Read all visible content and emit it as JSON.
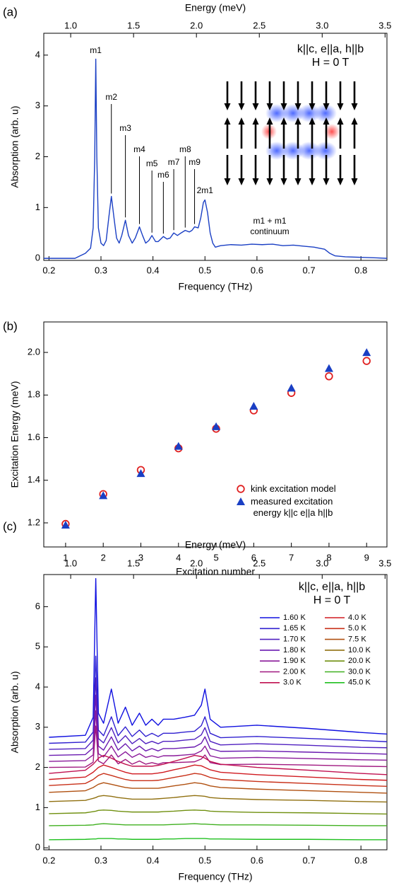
{
  "chart_data": [
    {
      "type": "line",
      "panel_label": "(a)",
      "x_label": "Frequency (THz)",
      "y_label": "Absorption (arb. u)",
      "x2_label": "Energy (meV)",
      "xlim": [
        0.19,
        0.85
      ],
      "ylim": [
        -0.04,
        4.43
      ],
      "x2lim": [
        0.786,
        3.515
      ],
      "xticks": [
        0.2,
        0.3,
        0.4,
        0.5,
        0.6,
        0.7,
        0.8
      ],
      "yticks": [
        0,
        1,
        2,
        3,
        4
      ],
      "x2ticks": [
        {
          "value": 1,
          "label": "1.0"
        },
        1.5,
        {
          "value": 2,
          "label": "2.0"
        },
        2.5,
        {
          "value": 3,
          "label": "3.0"
        },
        3.5
      ],
      "x": [
        0.19,
        0.25,
        0.26,
        0.27,
        0.28,
        0.285,
        0.288,
        0.29,
        0.292,
        0.295,
        0.3,
        0.305,
        0.31,
        0.315,
        0.32,
        0.325,
        0.33,
        0.335,
        0.34,
        0.347,
        0.353,
        0.36,
        0.366,
        0.374,
        0.38,
        0.386,
        0.392,
        0.398,
        0.405,
        0.41,
        0.415,
        0.42,
        0.427,
        0.433,
        0.44,
        0.447,
        0.454,
        0.462,
        0.47,
        0.475,
        0.48,
        0.487,
        0.492,
        0.497,
        0.5,
        0.505,
        0.51,
        0.515,
        0.52,
        0.53,
        0.55,
        0.57,
        0.59,
        0.61,
        0.63,
        0.65,
        0.67,
        0.69,
        0.71,
        0.72,
        0.73,
        0.74,
        0.75,
        0.77,
        0.8,
        0.83,
        0.85
      ],
      "series": [
        {
          "color": "#1a3fc4",
          "values": [
            0,
            0,
            0.05,
            0.1,
            0.2,
            0.6,
            2.0,
            3.92,
            2.0,
            0.6,
            0.3,
            0.25,
            0.35,
            0.8,
            1.22,
            0.8,
            0.4,
            0.3,
            0.45,
            0.75,
            0.45,
            0.3,
            0.4,
            0.62,
            0.45,
            0.3,
            0.35,
            0.45,
            0.33,
            0.33,
            0.38,
            0.43,
            0.38,
            0.4,
            0.5,
            0.45,
            0.5,
            0.55,
            0.52,
            0.55,
            0.62,
            0.6,
            0.8,
            1.1,
            1.15,
            0.9,
            0.5,
            0.3,
            0.22,
            0.25,
            0.27,
            0.26,
            0.28,
            0.27,
            0.28,
            0.25,
            0.26,
            0.24,
            0.22,
            0.2,
            0.18,
            0.1,
            0.05,
            0.03,
            0.02,
            0.01,
            0
          ]
        }
      ],
      "annotations": [
        {
          "text": "m1",
          "x": 0.29,
          "y": 3.92
        },
        {
          "text": "m2",
          "x": 0.32,
          "y": 1.22
        },
        {
          "text": "m3",
          "x": 0.347,
          "y": 0.75
        },
        {
          "text": "m4",
          "x": 0.374,
          "y": 0.62
        },
        {
          "text": "m5",
          "x": 0.398,
          "y": 0.45
        },
        {
          "text": "m6",
          "x": 0.42,
          "y": 0.43
        },
        {
          "text": "m7",
          "x": 0.44,
          "y": 0.5
        },
        {
          "text": "m8",
          "x": 0.462,
          "y": 0.55
        },
        {
          "text": "m9",
          "x": 0.48,
          "y": 0.62
        },
        {
          "text": "2m1",
          "x": 0.5,
          "y": 1.15
        }
      ],
      "notes": [
        "m1 + m1\ncontinuum",
        "k||c, e||a, h||b\nH = 0 T"
      ]
    },
    {
      "type": "scatter",
      "panel_label": "(b)",
      "x_label": "Excitation number",
      "y_label": "Excitation Energy (meV)",
      "xlim": [
        0.42,
        9.54
      ],
      "ylim": [
        1.087,
        2.143
      ],
      "xticks": [
        1,
        2,
        3,
        4,
        5,
        6,
        7,
        8,
        9
      ],
      "yticks": [
        1.2,
        1.4,
        1.6,
        1.8,
        {
          "value": 2,
          "label": "2.0"
        }
      ],
      "x": [
        1,
        2,
        3,
        4,
        5,
        6,
        7,
        8,
        9
      ],
      "legend": "lower right",
      "series": [
        {
          "name": "kink excitation model",
          "color": "#e02020",
          "marker": "circle-open",
          "values": [
            1.195,
            1.335,
            1.448,
            1.55,
            1.642,
            1.728,
            1.81,
            1.888,
            1.96
          ]
        },
        {
          "name": "measured excitation\nenergy k||c e||a h||b",
          "color": "#1a3fc4",
          "marker": "triangle",
          "values": [
            1.19,
            1.328,
            1.432,
            1.56,
            1.652,
            1.748,
            1.833,
            1.925,
            2.0
          ]
        }
      ]
    },
    {
      "type": "line",
      "panel_label": "(c)",
      "x_label": "Frequency (THz)",
      "y_label": "Absorption (arb. u)",
      "x2_label": "Energy (meV)",
      "xlim": [
        0.19,
        0.85
      ],
      "ylim": [
        -0.05,
        6.8
      ],
      "x2lim": [
        0.786,
        3.515
      ],
      "xticks": [
        0.2,
        0.3,
        0.4,
        0.5,
        0.6,
        0.7,
        0.8
      ],
      "yticks": [
        0,
        1,
        2,
        3,
        4,
        5,
        6
      ],
      "x2ticks": [
        {
          "value": 1,
          "label": "1.0"
        },
        1.5,
        {
          "value": 2,
          "label": "2.0"
        },
        2.5,
        {
          "value": 3,
          "label": "3.0"
        },
        3.5
      ],
      "legend": "upper right",
      "notes": [
        "k||c, e||a, h||b\nH = 0 T"
      ],
      "x": [
        0.2,
        0.27,
        0.285,
        0.29,
        0.295,
        0.305,
        0.32,
        0.333,
        0.347,
        0.36,
        0.374,
        0.386,
        0.398,
        0.41,
        0.42,
        0.44,
        0.462,
        0.48,
        0.493,
        0.5,
        0.51,
        0.53,
        0.6,
        0.7,
        0.8,
        0.85
      ],
      "series": [
        {
          "name": "1.60 K",
          "color": "#1010e0",
          "values": [
            2.75,
            2.8,
            3.25,
            6.7,
            3.35,
            3.1,
            3.95,
            3.1,
            3.5,
            3.05,
            3.35,
            3.05,
            3.2,
            3.05,
            3.2,
            3.2,
            3.25,
            3.3,
            3.55,
            3.95,
            3.2,
            3.0,
            3.05,
            2.97,
            2.87,
            2.83
          ]
        },
        {
          "name": "1.65 K",
          "color": "#3020d0",
          "values": [
            2.6,
            2.63,
            2.88,
            4.77,
            2.93,
            2.79,
            3.26,
            2.79,
            3.01,
            2.77,
            2.93,
            2.77,
            2.85,
            2.77,
            2.85,
            2.85,
            2.88,
            2.9,
            3.04,
            3.26,
            2.85,
            2.74,
            2.77,
            2.72,
            2.67,
            2.64
          ]
        },
        {
          "name": "1.70 K",
          "color": "#5020c0",
          "values": [
            2.45,
            2.47,
            2.68,
            4.23,
            2.72,
            2.61,
            2.99,
            2.61,
            2.79,
            2.59,
            2.72,
            2.59,
            2.65,
            2.59,
            2.65,
            2.65,
            2.68,
            2.7,
            2.81,
            2.99,
            2.65,
            2.56,
            2.59,
            2.55,
            2.5,
            2.49
          ]
        },
        {
          "name": "1.80 K",
          "color": "#6a1ab0",
          "values": [
            2.3,
            2.32,
            2.49,
            3.8,
            2.53,
            2.43,
            2.76,
            2.43,
            2.59,
            2.41,
            2.53,
            2.41,
            2.47,
            2.41,
            2.47,
            2.47,
            2.49,
            2.51,
            2.6,
            2.76,
            2.47,
            2.4,
            2.41,
            2.38,
            2.35,
            2.33
          ]
        },
        {
          "name": "1.90 K",
          "color": "#8a1a9a",
          "values": [
            2.15,
            2.17,
            2.31,
            3.41,
            2.34,
            2.26,
            2.53,
            2.26,
            2.39,
            2.25,
            2.34,
            2.25,
            2.29,
            2.25,
            2.29,
            2.29,
            2.31,
            2.33,
            2.41,
            2.53,
            2.29,
            2.23,
            2.25,
            2.22,
            2.19,
            2.18
          ]
        },
        {
          "name": "2.00 K",
          "color": "#a01880",
          "values": [
            2.0,
            2.01,
            2.13,
            3.03,
            2.16,
            2.09,
            2.31,
            2.09,
            2.2,
            2.08,
            2.16,
            2.08,
            2.12,
            2.08,
            2.12,
            2.12,
            2.13,
            2.14,
            2.21,
            2.31,
            2.12,
            2.07,
            2.08,
            2.06,
            2.03,
            2.02
          ]
        },
        {
          "name": "3.0 K",
          "color": "#c01050",
          "values": [
            1.85,
            1.93,
            2.08,
            2.15,
            2.23,
            2.3,
            2.23,
            2.15,
            2.08,
            2.03,
            2.03,
            2.03,
            2.03,
            2.05,
            2.08,
            2.15,
            2.23,
            2.3,
            2.27,
            2.23,
            2.15,
            2.08,
            2.0,
            1.93,
            1.85,
            1.82
          ]
        },
        {
          "name": "4.0 K",
          "color": "#d01a20",
          "values": [
            1.7,
            1.76,
            1.88,
            1.94,
            2.0,
            2.06,
            2.0,
            1.94,
            1.88,
            1.84,
            1.84,
            1.84,
            1.84,
            1.86,
            1.88,
            1.94,
            2.0,
            2.06,
            2.04,
            2.0,
            1.94,
            1.88,
            1.82,
            1.76,
            1.7,
            1.68
          ]
        },
        {
          "name": "5.0 K",
          "color": "#c83018",
          "values": [
            1.55,
            1.6,
            1.7,
            1.75,
            1.8,
            1.85,
            1.8,
            1.75,
            1.7,
            1.67,
            1.67,
            1.67,
            1.67,
            1.68,
            1.7,
            1.75,
            1.8,
            1.85,
            1.83,
            1.8,
            1.75,
            1.7,
            1.65,
            1.6,
            1.55,
            1.53
          ]
        },
        {
          "name": "7.5 K",
          "color": "#b05010",
          "values": [
            1.38,
            1.42,
            1.5,
            1.54,
            1.58,
            1.62,
            1.58,
            1.54,
            1.5,
            1.48,
            1.48,
            1.48,
            1.48,
            1.48,
            1.5,
            1.54,
            1.58,
            1.62,
            1.6,
            1.58,
            1.54,
            1.5,
            1.46,
            1.42,
            1.38,
            1.36
          ]
        },
        {
          "name": "10.0 K",
          "color": "#907010",
          "values": [
            1.15,
            1.18,
            1.23,
            1.25,
            1.28,
            1.3,
            1.28,
            1.25,
            1.23,
            1.21,
            1.21,
            1.21,
            1.21,
            1.22,
            1.23,
            1.25,
            1.28,
            1.3,
            1.29,
            1.28,
            1.25,
            1.23,
            1.2,
            1.18,
            1.15,
            1.14
          ]
        },
        {
          "name": "20.0 K",
          "color": "#709010",
          "values": [
            0.85,
            0.87,
            0.9,
            0.91,
            0.93,
            0.94,
            0.93,
            0.91,
            0.9,
            0.89,
            0.89,
            0.89,
            0.89,
            0.89,
            0.9,
            0.91,
            0.93,
            0.94,
            0.93,
            0.93,
            0.91,
            0.9,
            0.88,
            0.87,
            0.85,
            0.84
          ]
        },
        {
          "name": "30.0 K",
          "color": "#40b020",
          "values": [
            0.55,
            0.56,
            0.57,
            0.58,
            0.59,
            0.6,
            0.59,
            0.58,
            0.57,
            0.57,
            0.57,
            0.57,
            0.57,
            0.57,
            0.57,
            0.58,
            0.59,
            0.6,
            0.59,
            0.59,
            0.58,
            0.57,
            0.57,
            0.56,
            0.55,
            0.55
          ]
        },
        {
          "name": "45.0 K",
          "color": "#20c020",
          "values": [
            0.2,
            0.21,
            0.22,
            0.22,
            0.23,
            0.23,
            0.23,
            0.22,
            0.22,
            0.21,
            0.21,
            0.21,
            0.21,
            0.21,
            0.22,
            0.22,
            0.23,
            0.23,
            0.23,
            0.23,
            0.22,
            0.22,
            0.21,
            0.21,
            0.2,
            0.2
          ]
        }
      ]
    }
  ]
}
